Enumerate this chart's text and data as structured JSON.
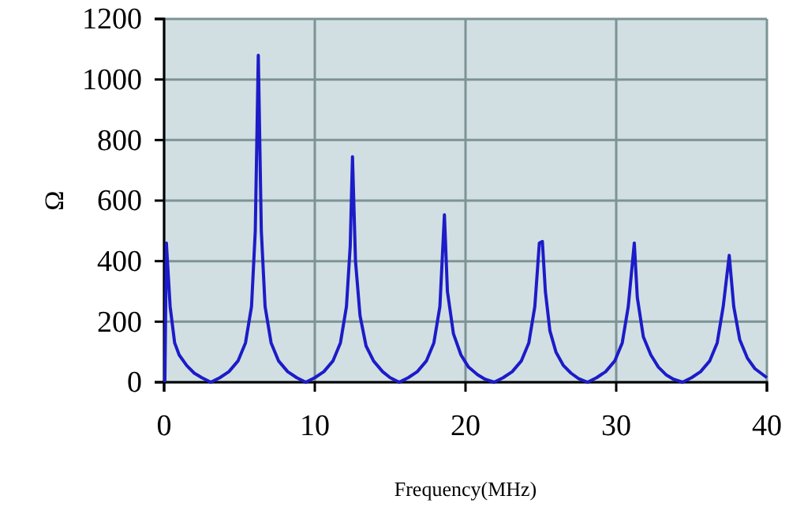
{
  "chart_data": {
    "type": "line",
    "xlabel": "Frequency(MHz)",
    "ylabel": "Ω",
    "xlim": [
      0,
      40
    ],
    "xticks": [
      0,
      10,
      20,
      30,
      40
    ],
    "ylim": [
      0,
      1200
    ],
    "yticks": [
      0,
      200,
      400,
      600,
      800,
      1000,
      1200
    ],
    "grid": true,
    "marker": "none",
    "line_style": "solid",
    "series": [
      {
        "color": "#1c1cc8",
        "x": [
          0.05,
          0.15,
          0.4,
          0.7,
          1.0,
          1.5,
          2.0,
          2.5,
          3.1,
          3.7,
          4.3,
          4.9,
          5.4,
          5.8,
          6.05,
          6.25,
          6.45,
          6.7,
          7.1,
          7.6,
          8.2,
          8.8,
          9.4,
          10.0,
          10.6,
          11.2,
          11.7,
          12.1,
          12.35,
          12.5,
          12.7,
          13.0,
          13.4,
          13.9,
          14.5,
          15.0,
          15.6,
          16.2,
          16.8,
          17.4,
          17.9,
          18.3,
          18.6,
          18.8,
          19.2,
          19.7,
          20.2,
          20.8,
          21.3,
          21.9,
          22.5,
          23.1,
          23.7,
          24.2,
          24.6,
          24.9,
          25.1,
          25.3,
          25.6,
          26.0,
          26.5,
          27.0,
          27.5,
          28.1,
          28.7,
          29.3,
          29.9,
          30.4,
          30.8,
          31.2,
          31.4,
          31.8,
          32.3,
          32.8,
          33.3,
          33.8,
          34.4,
          35.0,
          35.6,
          36.2,
          36.7,
          37.1,
          37.5,
          37.8,
          38.2,
          38.7,
          39.2,
          39.6,
          40.0
        ],
        "values": [
          0,
          460,
          250,
          130,
          90,
          55,
          30,
          15,
          0,
          15,
          35,
          70,
          130,
          250,
          500,
          1080,
          500,
          250,
          130,
          70,
          35,
          15,
          0,
          15,
          35,
          70,
          130,
          250,
          450,
          745,
          400,
          220,
          120,
          70,
          35,
          15,
          0,
          15,
          35,
          70,
          130,
          250,
          553,
          300,
          160,
          90,
          50,
          25,
          10,
          0,
          15,
          35,
          70,
          130,
          250,
          460,
          465,
          300,
          170,
          100,
          55,
          30,
          12,
          0,
          15,
          35,
          70,
          130,
          250,
          460,
          280,
          150,
          90,
          50,
          25,
          10,
          0,
          15,
          35,
          70,
          130,
          250,
          419,
          250,
          140,
          80,
          45,
          30,
          15
        ]
      }
    ]
  }
}
